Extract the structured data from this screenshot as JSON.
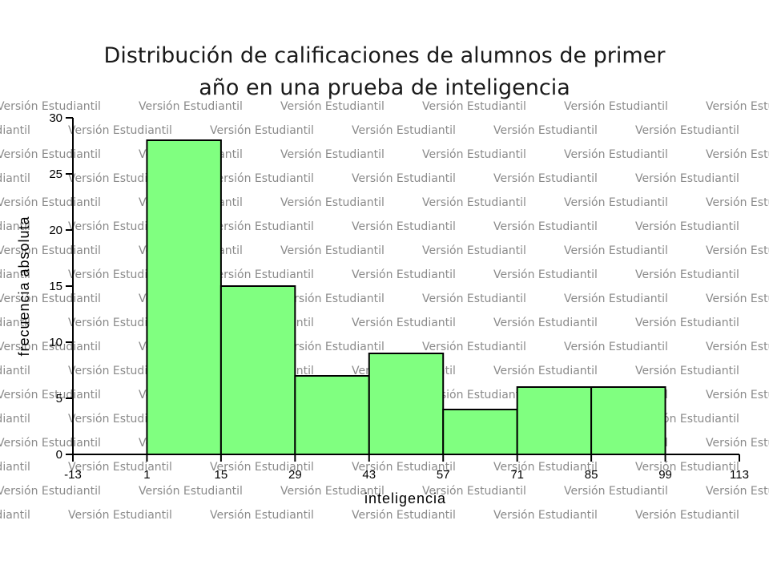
{
  "title_line1": "Distribución de calificaciones de alumnos de primer",
  "title_line2": "año en una prueba de inteligencia",
  "watermark": "Versión Estudiantil",
  "colors": {
    "bar_fill": "#80ff80",
    "bar_stroke": "#000000",
    "watermark": "#8a8a8a"
  },
  "chart_data": {
    "type": "bar",
    "title": "Distribución de calificaciones de alumnos de primer año en una prueba de inteligencia",
    "xlabel": "inteligencia",
    "ylabel": "frecuencia absoluta",
    "bins": [
      {
        "from": 1,
        "to": 15,
        "value": 28
      },
      {
        "from": 15,
        "to": 29,
        "value": 15
      },
      {
        "from": 29,
        "to": 43,
        "value": 7
      },
      {
        "from": 43,
        "to": 57,
        "value": 9
      },
      {
        "from": 57,
        "to": 71,
        "value": 4
      },
      {
        "from": 71,
        "to": 85,
        "value": 6
      },
      {
        "from": 85,
        "to": 99,
        "value": 6
      }
    ],
    "xlim": [
      -13,
      113
    ],
    "ylim": [
      0,
      30
    ],
    "x_ticks": [
      "-13",
      "1",
      "15",
      "29",
      "43",
      "57",
      "71",
      "85",
      "99",
      "113"
    ],
    "y_ticks": [
      "0",
      "5",
      "10",
      "15",
      "20",
      "25",
      "30"
    ],
    "grid": false,
    "legend": "none"
  }
}
